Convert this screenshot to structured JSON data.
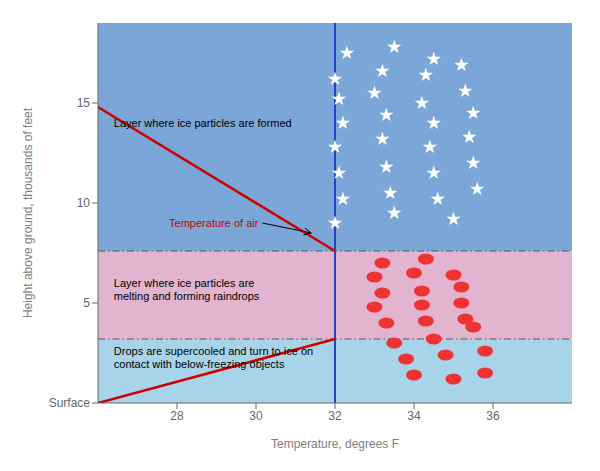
{
  "chart_data": {
    "type": "scatter",
    "xlabel": "Temperature, degrees F",
    "ylabel": "Height above ground, thousands of feet",
    "xlim": [
      26,
      38
    ],
    "ylim": [
      0,
      19
    ],
    "xticks": [
      28,
      30,
      32,
      34,
      36
    ],
    "yticks": [
      {
        "value": 0,
        "label": "Surface"
      },
      5,
      10,
      15
    ],
    "grid": false,
    "bands": [
      {
        "from": 0,
        "to": 3.2,
        "color": "#a8d4ea"
      },
      {
        "from": 3.2,
        "to": 7.6,
        "color": "#e2b4cf"
      },
      {
        "from": 7.6,
        "to": 19,
        "color": "#7ba6d8"
      }
    ],
    "reference_lines": [
      {
        "axis": "y",
        "value": 7.6,
        "color": "#555555",
        "line_style": "dashdot"
      },
      {
        "axis": "y",
        "value": 3.2,
        "color": "#555555",
        "line_style": "dashdot"
      },
      {
        "axis": "x",
        "value": 32,
        "color": "#2244cc",
        "line_style": "solid"
      }
    ],
    "series": [
      {
        "type": "line",
        "color": "#cc0000",
        "x": [
          26.0,
          32.0
        ],
        "values": [
          14.8,
          7.6
        ]
      },
      {
        "type": "line",
        "color": "#cc0000",
        "x": [
          32.0,
          26.0
        ],
        "values": [
          3.2,
          0.0
        ]
      },
      {
        "type": "scatter",
        "marker": "star",
        "color": "#ffffff",
        "x": [
          32.3,
          33.5,
          34.5,
          32.0,
          33.2,
          34.3,
          35.2,
          32.1,
          33.0,
          34.2,
          35.3,
          32.2,
          33.3,
          34.5,
          35.5,
          32.0,
          33.2,
          34.4,
          35.4,
          32.1,
          33.3,
          34.5,
          35.5,
          32.2,
          33.4,
          34.6,
          35.6,
          32.0,
          33.5,
          35.0
        ],
        "values": [
          17.5,
          17.8,
          17.2,
          16.2,
          16.6,
          16.4,
          16.9,
          15.2,
          15.5,
          15.0,
          15.6,
          14.0,
          14.4,
          14.0,
          14.5,
          12.8,
          13.2,
          12.8,
          13.3,
          11.5,
          11.8,
          11.5,
          12.0,
          10.2,
          10.5,
          10.2,
          10.7,
          9.0,
          9.5,
          9.2
        ]
      },
      {
        "type": "scatter",
        "marker": "ellipse",
        "color": "#ee3333",
        "x": [
          33.2,
          34.3,
          33.0,
          34.0,
          35.0,
          33.2,
          34.2,
          35.2,
          33.0,
          34.2,
          35.2,
          33.3,
          34.3,
          35.3,
          33.5,
          34.5,
          35.5,
          33.8,
          34.8,
          35.8,
          34.0,
          35.0,
          35.8
        ],
        "values": [
          7.0,
          7.2,
          6.3,
          6.5,
          6.4,
          5.5,
          5.6,
          5.8,
          4.8,
          4.9,
          5.0,
          4.0,
          4.1,
          4.2,
          3.0,
          3.2,
          3.8,
          2.2,
          2.4,
          2.6,
          1.4,
          1.2,
          1.5
        ]
      }
    ],
    "annotations": [
      {
        "text": "Layer where ice particles are formed",
        "x": 26.4,
        "y": 14.0,
        "color": "#000000"
      },
      {
        "text": "Layer where ice particles are\nmelting and forming raindrops",
        "x": 26.4,
        "y": 5.7,
        "color": "#000000"
      },
      {
        "text": "Drops are supercooled and turn to ice on\ncontact with below-freezing objects",
        "x": 26.4,
        "y": 2.3,
        "color": "#000000"
      },
      {
        "text": "Temperature of air",
        "x": 27.8,
        "y": 9.0,
        "color": "#cc0000",
        "arrow_to": [
          31.4,
          8.5
        ]
      }
    ]
  }
}
